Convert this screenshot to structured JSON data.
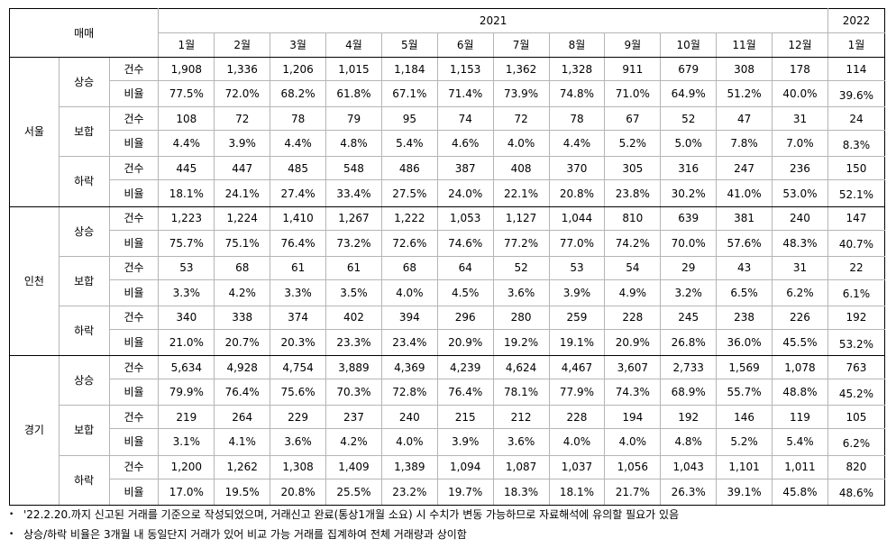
{
  "header": {
    "corner": "매매",
    "year_2021": "2021",
    "year_2022": "2022",
    "months_2021": [
      "1월",
      "2월",
      "3월",
      "4월",
      "5월",
      "6월",
      "7월",
      "8월",
      "9월",
      "10월",
      "11월",
      "12월"
    ],
    "months_2022": [
      "1월"
    ]
  },
  "metrics": {
    "count": "건수",
    "ratio": "비율"
  },
  "regions": [
    {
      "name": "서울",
      "groups": [
        {
          "dir": "상승",
          "count": [
            "1,908",
            "1,336",
            "1,206",
            "1,015",
            "1,184",
            "1,153",
            "1,362",
            "1,328",
            "911",
            "679",
            "308",
            "178",
            "114"
          ],
          "ratio": [
            "77.5%",
            "72.0%",
            "68.2%",
            "61.8%",
            "67.1%",
            "71.4%",
            "73.9%",
            "74.8%",
            "71.0%",
            "64.9%",
            "51.2%",
            "40.0%",
            "39.6%"
          ]
        },
        {
          "dir": "보합",
          "count": [
            "108",
            "72",
            "78",
            "79",
            "95",
            "74",
            "72",
            "78",
            "67",
            "52",
            "47",
            "31",
            "24"
          ],
          "ratio": [
            "4.4%",
            "3.9%",
            "4.4%",
            "4.8%",
            "5.4%",
            "4.6%",
            "4.0%",
            "4.4%",
            "5.2%",
            "5.0%",
            "7.8%",
            "7.0%",
            "8.3%"
          ]
        },
        {
          "dir": "하락",
          "count": [
            "445",
            "447",
            "485",
            "548",
            "486",
            "387",
            "408",
            "370",
            "305",
            "316",
            "247",
            "236",
            "150"
          ],
          "ratio": [
            "18.1%",
            "24.1%",
            "27.4%",
            "33.4%",
            "27.5%",
            "24.0%",
            "22.1%",
            "20.8%",
            "23.8%",
            "30.2%",
            "41.0%",
            "53.0%",
            "52.1%"
          ]
        }
      ]
    },
    {
      "name": "인천",
      "groups": [
        {
          "dir": "상승",
          "count": [
            "1,223",
            "1,224",
            "1,410",
            "1,267",
            "1,222",
            "1,053",
            "1,127",
            "1,044",
            "810",
            "639",
            "381",
            "240",
            "147"
          ],
          "ratio": [
            "75.7%",
            "75.1%",
            "76.4%",
            "73.2%",
            "72.6%",
            "74.6%",
            "77.2%",
            "77.0%",
            "74.2%",
            "70.0%",
            "57.6%",
            "48.3%",
            "40.7%"
          ]
        },
        {
          "dir": "보합",
          "count": [
            "53",
            "68",
            "61",
            "61",
            "68",
            "64",
            "52",
            "53",
            "54",
            "29",
            "43",
            "31",
            "22"
          ],
          "ratio": [
            "3.3%",
            "4.2%",
            "3.3%",
            "3.5%",
            "4.0%",
            "4.5%",
            "3.6%",
            "3.9%",
            "4.9%",
            "3.2%",
            "6.5%",
            "6.2%",
            "6.1%"
          ]
        },
        {
          "dir": "하락",
          "count": [
            "340",
            "338",
            "374",
            "402",
            "394",
            "296",
            "280",
            "259",
            "228",
            "245",
            "238",
            "226",
            "192"
          ],
          "ratio": [
            "21.0%",
            "20.7%",
            "20.3%",
            "23.3%",
            "23.4%",
            "20.9%",
            "19.2%",
            "19.1%",
            "20.9%",
            "26.8%",
            "36.0%",
            "45.5%",
            "53.2%"
          ]
        }
      ]
    },
    {
      "name": "경기",
      "groups": [
        {
          "dir": "상승",
          "count": [
            "5,634",
            "4,928",
            "4,754",
            "3,889",
            "4,369",
            "4,239",
            "4,624",
            "4,467",
            "3,607",
            "2,733",
            "1,569",
            "1,078",
            "763"
          ],
          "ratio": [
            "79.9%",
            "76.4%",
            "75.6%",
            "70.3%",
            "72.8%",
            "76.4%",
            "78.1%",
            "77.9%",
            "74.3%",
            "68.9%",
            "55.7%",
            "48.8%",
            "45.2%"
          ]
        },
        {
          "dir": "보합",
          "count": [
            "219",
            "264",
            "229",
            "237",
            "240",
            "215",
            "212",
            "228",
            "194",
            "192",
            "146",
            "119",
            "105"
          ],
          "ratio": [
            "3.1%",
            "4.1%",
            "3.6%",
            "4.2%",
            "4.0%",
            "3.9%",
            "3.6%",
            "4.0%",
            "4.0%",
            "4.8%",
            "5.2%",
            "5.4%",
            "6.2%"
          ]
        },
        {
          "dir": "하락",
          "count": [
            "1,200",
            "1,262",
            "1,308",
            "1,409",
            "1,389",
            "1,094",
            "1,087",
            "1,037",
            "1,056",
            "1,043",
            "1,101",
            "1,011",
            "820"
          ],
          "ratio": [
            "17.0%",
            "19.5%",
            "20.8%",
            "25.5%",
            "23.2%",
            "19.7%",
            "18.3%",
            "18.1%",
            "21.7%",
            "26.3%",
            "39.1%",
            "45.8%",
            "48.6%"
          ]
        }
      ]
    }
  ],
  "notes": {
    "bullet": "•",
    "items": [
      "'22.2.20.까지 신고된 거래를 기준으로 작성되었으며, 거래신고 완료(통상1개월 소요) 시 수치가 변동 가능하므로 자료해석에 유의할 필요가 있음",
      "상승/하락 비율은 3개월 내 동일단지 거래가 있어 비교 가능 거래를 집계하여 전체 거래량과 상이함"
    ]
  }
}
